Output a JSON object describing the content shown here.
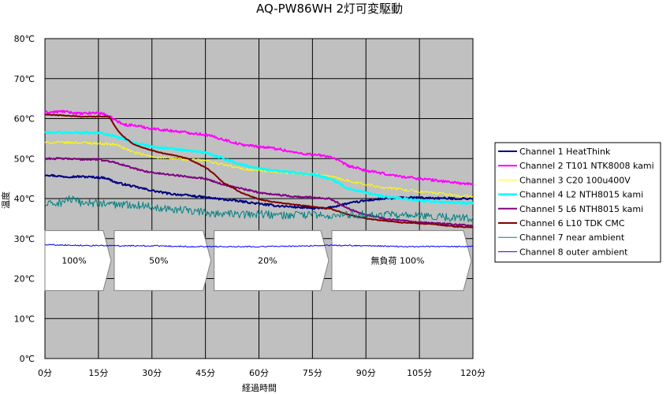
{
  "chart_data": {
    "type": "line",
    "title": "AQ-PW86WH 2灯可変駆動",
    "xlabel": "経過時間",
    "ylabel": "温度",
    "xlim": [
      0,
      120
    ],
    "ylim": [
      0,
      80
    ],
    "x_ticks": [
      {
        "value": 0,
        "label": "0分"
      },
      {
        "value": 15,
        "label": "15分"
      },
      {
        "value": 30,
        "label": "30分"
      },
      {
        "value": 45,
        "label": "45分"
      },
      {
        "value": 60,
        "label": "60分"
      },
      {
        "value": 75,
        "label": "75分"
      },
      {
        "value": 90,
        "label": "90分"
      },
      {
        "value": 105,
        "label": "105分"
      },
      {
        "value": 120,
        "label": "120分"
      }
    ],
    "y_ticks": [
      {
        "value": 0,
        "label": "0℃"
      },
      {
        "value": 10,
        "label": "10℃"
      },
      {
        "value": 20,
        "label": "20℃"
      },
      {
        "value": 30,
        "label": "30℃"
      },
      {
        "value": 40,
        "label": "40℃"
      },
      {
        "value": 50,
        "label": "50℃"
      },
      {
        "value": 60,
        "label": "60℃"
      },
      {
        "value": 70,
        "label": "70℃"
      },
      {
        "value": 80,
        "label": "80℃"
      }
    ],
    "grid": true,
    "plot_background": "#c0c0c0",
    "legend_position": "right",
    "phases": [
      {
        "label": "100%",
        "start": 0,
        "end": 19
      },
      {
        "label": "50%",
        "start": 19,
        "end": 47
      },
      {
        "label": "20%",
        "start": 47,
        "end": 80
      },
      {
        "label": "無負荷 100%",
        "start": 80,
        "end": 120
      }
    ],
    "phase_y_range": [
      17,
      32
    ],
    "series": [
      {
        "name": "Channel 1 HeatThink",
        "color": "#000080",
        "width": 2,
        "noise": 0.25,
        "x": [
          0,
          5,
          10,
          17,
          20,
          25,
          30,
          35,
          40,
          45,
          50,
          55,
          60,
          65,
          70,
          75,
          79,
          80,
          85,
          90,
          95,
          100,
          105,
          110,
          115,
          120
        ],
        "y": [
          46,
          45.5,
          45.5,
          45.2,
          44,
          43,
          42,
          41.2,
          40.8,
          40.3,
          39.8,
          39.3,
          38.7,
          38.2,
          37.9,
          37.6,
          37.5,
          37.8,
          38.8,
          39.5,
          40,
          40.2,
          40.2,
          40.1,
          40,
          40
        ]
      },
      {
        "name": "Channel 2 T101 NTK8008 kami",
        "color": "#ff00ff",
        "width": 2,
        "noise": 0.3,
        "x": [
          0,
          5,
          10,
          15,
          17,
          20,
          22,
          25,
          30,
          35,
          40,
          45,
          50,
          55,
          60,
          65,
          70,
          75,
          80,
          85,
          90,
          95,
          100,
          105,
          110,
          115,
          120
        ],
        "y": [
          61.5,
          61.8,
          61.2,
          61.5,
          61,
          59.5,
          58.5,
          58.3,
          57.5,
          57,
          56.5,
          56,
          54.8,
          53.5,
          53,
          52.5,
          51.5,
          51,
          50.5,
          48.2,
          47,
          46.2,
          45.5,
          45,
          44.5,
          44,
          43.5
        ]
      },
      {
        "name": "Channel 3 C20 100u400V",
        "color": "#ffff00",
        "width": 1,
        "noise": 0.35,
        "x": [
          0,
          5,
          10,
          15,
          20,
          25,
          30,
          35,
          40,
          45,
          50,
          55,
          60,
          65,
          70,
          75,
          80,
          85,
          90,
          95,
          100,
          105,
          110,
          115,
          120
        ],
        "y": [
          54,
          54,
          54,
          53.8,
          53.5,
          51.5,
          50.5,
          50,
          49.8,
          49.5,
          48.5,
          47.5,
          47,
          46.5,
          46.3,
          46,
          45.5,
          44.5,
          43.5,
          42.8,
          42.3,
          41.8,
          41.3,
          40.8,
          40.5
        ]
      },
      {
        "name": "Channel 4 L2 NTH8015 kami",
        "color": "#00ffff",
        "width": 2.5,
        "noise": 0.25,
        "x": [
          0,
          5,
          10,
          15,
          20,
          25,
          30,
          35,
          40,
          45,
          50,
          55,
          60,
          65,
          70,
          75,
          80,
          85,
          90,
          95,
          100,
          105,
          110,
          115,
          120
        ],
        "y": [
          56.5,
          56.5,
          56.5,
          56.5,
          55.5,
          54,
          53,
          52.5,
          52,
          51.5,
          50,
          48.5,
          47.5,
          47,
          46.5,
          46,
          45,
          42.5,
          41.5,
          40.5,
          40,
          39.5,
          39.2,
          39,
          38.8
        ]
      },
      {
        "name": "Channel 5 L6 NTH8015 kami",
        "color": "#800080",
        "width": 2,
        "noise": 0.2,
        "x": [
          0,
          5,
          10,
          15,
          20,
          25,
          30,
          35,
          40,
          45,
          50,
          55,
          60,
          65,
          70,
          75,
          80,
          82,
          85,
          90,
          95,
          100,
          105,
          110,
          115,
          120
        ],
        "y": [
          50,
          50,
          49.8,
          49.8,
          49,
          47.5,
          46.5,
          46,
          45.5,
          45,
          43.5,
          42.5,
          41.5,
          41,
          40.5,
          40.3,
          40,
          39,
          37.5,
          36,
          35,
          34.5,
          34,
          33.8,
          33.5,
          33.2
        ]
      },
      {
        "name": "Channel 6 L10 TDK CMC",
        "color": "#800000",
        "width": 2,
        "noise": 0.1,
        "x": [
          0,
          5,
          10,
          15,
          18,
          20,
          22,
          25,
          30,
          35,
          40,
          45,
          47,
          50,
          55,
          60,
          65,
          70,
          75,
          80,
          85,
          90,
          95,
          100,
          105,
          110,
          115,
          120
        ],
        "y": [
          61,
          60.8,
          60.5,
          60.5,
          60.5,
          57.5,
          55.5,
          53.5,
          52,
          51,
          50,
          47.8,
          46.5,
          44,
          41.5,
          39.8,
          39,
          38.5,
          38,
          37.5,
          36,
          35,
          34.5,
          34,
          33.8,
          33.5,
          33,
          32.8
        ]
      },
      {
        "name": "Channel 7 near ambient",
        "color": "#008080",
        "width": 1,
        "noise": 1.0,
        "x": [
          0,
          5,
          6,
          10,
          15,
          20,
          25,
          30,
          35,
          40,
          45,
          50,
          55,
          60,
          65,
          70,
          75,
          80,
          85,
          90,
          95,
          100,
          105,
          110,
          115,
          120
        ],
        "y": [
          38.5,
          39,
          40,
          39,
          38.8,
          38.5,
          38.5,
          38,
          37.5,
          37,
          36.5,
          36.2,
          36,
          36.2,
          35.8,
          35.8,
          36,
          35.5,
          36,
          36,
          36,
          35.8,
          35.5,
          35.5,
          35.2,
          35
        ]
      },
      {
        "name": "Channel 8 outer ambient",
        "color": "#0000ff",
        "width": 1,
        "noise": 0.15,
        "x": [
          0,
          10,
          20,
          30,
          40,
          50,
          60,
          70,
          80,
          90,
          100,
          110,
          120
        ],
        "y": [
          28.5,
          28.3,
          28.2,
          28.2,
          28,
          28,
          28,
          28.1,
          28.3,
          28.2,
          28,
          28,
          28
        ]
      }
    ]
  }
}
